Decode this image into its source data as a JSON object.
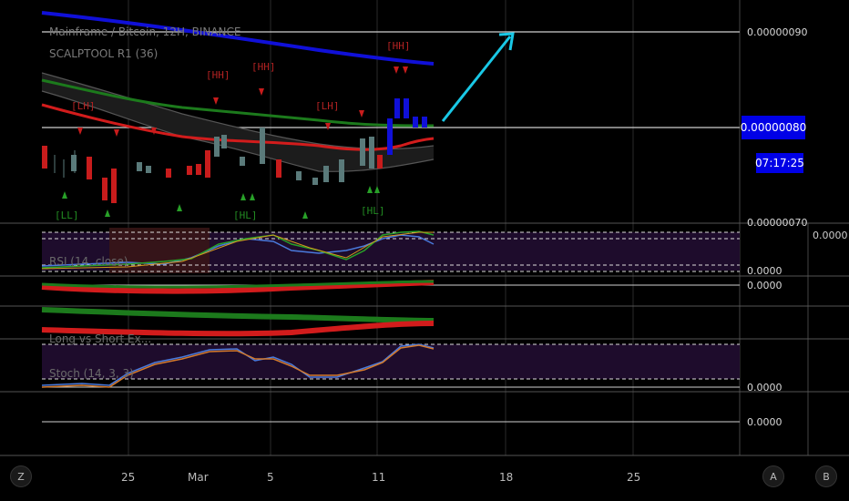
{
  "header": {
    "title": "Mainframe / Bitcoin, 12H, BINANCE",
    "indicator": "SCALPTOOL R1 (36)"
  },
  "indicators": {
    "rsi": "RSI (14, close)",
    "longshort": "Long vs Short Ex...",
    "stoch": "Stoch (14, 3, 3)"
  },
  "price_axis": {
    "top": "0.00000090",
    "current": "0.00000080",
    "countdown": "07:17:25",
    "bottom": "0.00000070",
    "zero_labels": [
      "0.0000",
      "0.0000",
      "0.0000",
      "0.0000",
      "0.0000"
    ]
  },
  "markers": {
    "hh1": "[HH]",
    "hh2": "[HH]",
    "hh3": "[HH]",
    "lh1": "[LH]",
    "lh2": "[LH]",
    "ll1": "[LL]",
    "hl1": "[HL]",
    "hl2": "[HL]"
  },
  "x_axis": {
    "ticks": [
      "25",
      "Mar",
      "5",
      "11",
      "18",
      "25"
    ]
  },
  "buttons": {
    "left": "Z",
    "auto": "A",
    "b": "B"
  },
  "colors": {
    "ma_blue": "#1010d8",
    "ma_green": "#1c7a1c",
    "ma_red": "#d21c1c",
    "arrow": "#19c8e6",
    "bull": "#5a7a7a",
    "bear": "#c81c1c",
    "band": "#2a0e3a"
  }
}
